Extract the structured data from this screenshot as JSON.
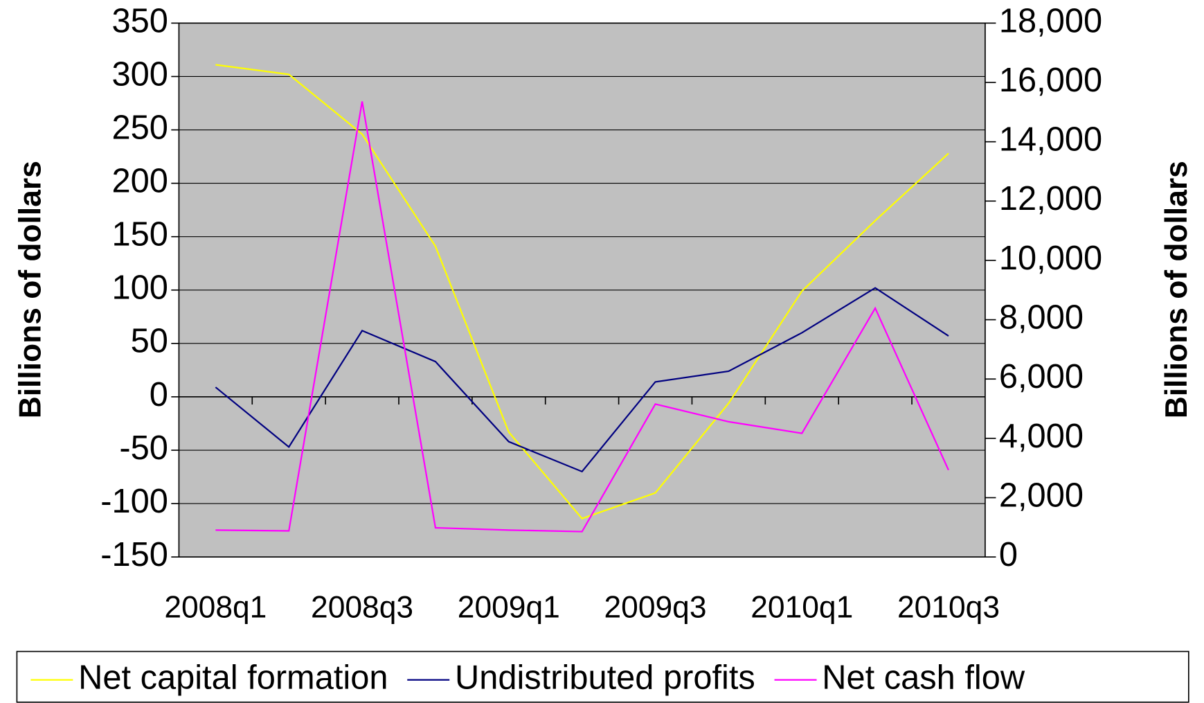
{
  "chart_data": {
    "type": "line",
    "categories": [
      "2008q1",
      null,
      "2008q3",
      null,
      "2009q1",
      null,
      "2009q3",
      null,
      "2010q1",
      null,
      "2010q3"
    ],
    "series": [
      {
        "name": "Net capital formation",
        "color": "#ffff00",
        "values": [
          311,
          302,
          246,
          141,
          -33,
          -114,
          -90,
          -6,
          99,
          165,
          228
        ]
      },
      {
        "name": "Undistributed profits",
        "color": "#000080",
        "values": [
          9,
          -47,
          62,
          33,
          -42,
          -70,
          14,
          24,
          60,
          102,
          57
        ]
      },
      {
        "name": "Net cash flow",
        "color": "#ff00ff",
        "axis": "y2",
        "values": [
          907,
          880,
          15360,
          985,
          907,
          855,
          5155,
          4560,
          4170,
          8390,
          2930
        ]
      }
    ],
    "ylabel": "Billions of dollars",
    "y2label": "Billions of dollars",
    "ylim": [
      -150,
      350
    ],
    "yticks": [
      -150,
      -100,
      -50,
      0,
      50,
      100,
      150,
      200,
      250,
      300,
      350
    ],
    "y2lim": [
      0,
      18000
    ],
    "y2ticks": [
      0,
      {
        "value": 2000,
        "label": "2,000"
      },
      {
        "value": 4000,
        "label": "4,000"
      },
      {
        "value": 6000,
        "label": "6,000"
      },
      {
        "value": 8000,
        "label": "8,000"
      },
      {
        "value": 10000,
        "label": "10,000"
      },
      {
        "value": 12000,
        "label": "12,000"
      },
      {
        "value": 14000,
        "label": "14,000"
      },
      {
        "value": 16000,
        "label": "16,000"
      },
      {
        "value": 18000,
        "label": "18,000"
      }
    ],
    "grid": true,
    "background": "#c0c0c0",
    "legend": "bottom"
  }
}
